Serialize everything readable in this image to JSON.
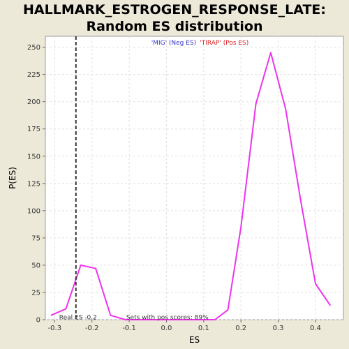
{
  "chart_data": {
    "type": "line",
    "title": "HALLMARK_ESTROGEN_RESPONSE_LATE: Random ES distribution",
    "xlabel": "ES",
    "ylabel": "P(ES)",
    "xlim": [
      -0.325,
      0.475
    ],
    "ylim": [
      0,
      260
    ],
    "xticks": [
      -0.3,
      -0.2,
      -0.1,
      0.0,
      0.1,
      0.2,
      0.3,
      0.4
    ],
    "xtick_labels": [
      "-0.3",
      "-0.2",
      "-0.1",
      "0.0",
      "0.1",
      "0.2",
      "0.3",
      "0.4"
    ],
    "yticks": [
      0,
      25,
      50,
      75,
      100,
      125,
      150,
      175,
      200,
      225,
      250
    ],
    "ytick_labels": [
      "0",
      "25",
      "50",
      "75",
      "100",
      "125",
      "150",
      "175",
      "200",
      "225",
      "250"
    ],
    "grid": true,
    "series": [
      {
        "color": "#ee33ee",
        "x": [
          -0.31,
          -0.27,
          -0.23,
          -0.19,
          -0.15,
          -0.11,
          -0.07,
          -0.03,
          0.01,
          0.05,
          0.09,
          0.13,
          0.165,
          0.2,
          0.24,
          0.28,
          0.32,
          0.36,
          0.4,
          0.44
        ],
        "y": [
          4,
          10,
          50,
          47,
          4,
          0,
          0,
          0,
          0,
          0,
          0,
          0,
          9,
          85,
          198,
          245,
          193,
          110,
          33,
          13
        ]
      }
    ],
    "real_es": -0.243,
    "real_es_label": "Real ES -0.2",
    "pos_scores_label": "Sets with pos scores: 89%",
    "legend_neg": "'MIG' (Neg ES)",
    "legend_pos": "'TIRAP' (Pos ES)",
    "colors": {
      "line": "#ee33ee",
      "plot_bg": "#ffffff",
      "frame_bg": "#ece9d8",
      "grid": "#e0e0e0",
      "real_es": "#333333"
    }
  }
}
